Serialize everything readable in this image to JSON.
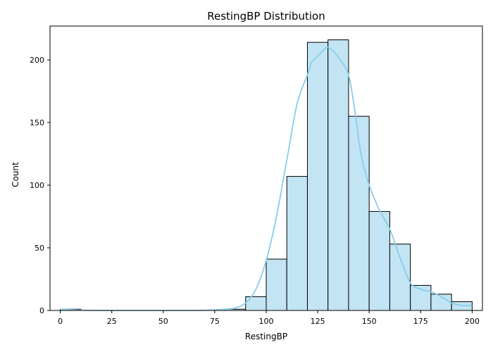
{
  "chart_data": {
    "type": "histogram",
    "title": "RestingBP Distribution",
    "xlabel": "RestingBP",
    "ylabel": "Count",
    "xlim": [
      -5,
      205
    ],
    "ylim": [
      0,
      227
    ],
    "x_ticks": [
      0,
      25,
      50,
      75,
      100,
      125,
      150,
      175,
      200
    ],
    "y_ticks": [
      0,
      50,
      100,
      150,
      200
    ],
    "grid": false,
    "legend": "none",
    "bar_color": "#c2e4f3",
    "bar_edge_color": "#000000",
    "kde_color": "#87ceeb",
    "bins": [
      {
        "x0": 0,
        "x1": 10,
        "count": 1
      },
      {
        "x0": 10,
        "x1": 20,
        "count": 0
      },
      {
        "x0": 20,
        "x1": 30,
        "count": 0
      },
      {
        "x0": 30,
        "x1": 40,
        "count": 0
      },
      {
        "x0": 40,
        "x1": 50,
        "count": 0
      },
      {
        "x0": 50,
        "x1": 60,
        "count": 0
      },
      {
        "x0": 60,
        "x1": 70,
        "count": 0
      },
      {
        "x0": 70,
        "x1": 80,
        "count": 0
      },
      {
        "x0": 80,
        "x1": 90,
        "count": 1
      },
      {
        "x0": 90,
        "x1": 100,
        "count": 11
      },
      {
        "x0": 100,
        "x1": 110,
        "count": 41
      },
      {
        "x0": 110,
        "x1": 120,
        "count": 107
      },
      {
        "x0": 120,
        "x1": 130,
        "count": 214
      },
      {
        "x0": 130,
        "x1": 140,
        "count": 216
      },
      {
        "x0": 140,
        "x1": 150,
        "count": 155
      },
      {
        "x0": 150,
        "x1": 160,
        "count": 79
      },
      {
        "x0": 160,
        "x1": 170,
        "count": 53
      },
      {
        "x0": 170,
        "x1": 180,
        "count": 20
      },
      {
        "x0": 180,
        "x1": 190,
        "count": 13
      },
      {
        "x0": 190,
        "x1": 200,
        "count": 7
      }
    ],
    "kde_curve": {
      "x": [
        0,
        10,
        20,
        40,
        60,
        70,
        80,
        85,
        90,
        95,
        100,
        105,
        110,
        115,
        120,
        122,
        125,
        128,
        130,
        133,
        136,
        140,
        143,
        146,
        150,
        155,
        160,
        165,
        170,
        175,
        180,
        185,
        190,
        195,
        200
      ],
      "y": [
        1,
        0.3,
        0,
        0,
        0,
        0.2,
        1,
        2,
        6,
        17,
        40,
        75,
        120,
        165,
        188,
        198,
        203,
        208,
        210,
        206,
        200,
        188,
        160,
        125,
        100,
        80,
        65,
        42,
        22,
        17,
        15,
        11,
        6,
        4,
        4
      ]
    }
  }
}
